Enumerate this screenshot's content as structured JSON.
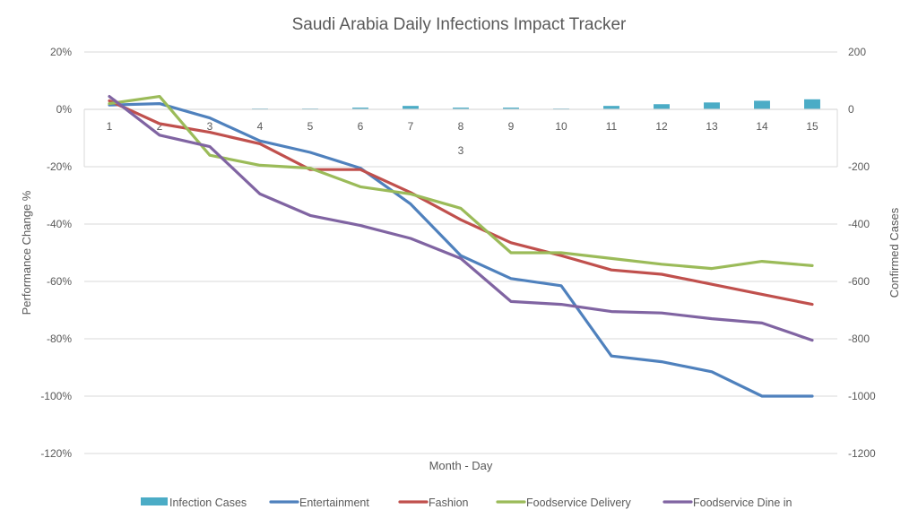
{
  "chart_data": {
    "type": "bar+line",
    "title": "Saudi Arabia Daily Infections Impact Tracker",
    "xlabel": "Month - Day",
    "ylabel": "Performance Change %",
    "y2label": "Confirmed Cases",
    "month_label": "3",
    "categories": [
      "1",
      "2",
      "3",
      "4",
      "5",
      "6",
      "7",
      "8",
      "9",
      "10",
      "11",
      "12",
      "13",
      "14",
      "15"
    ],
    "ylim": [
      -120,
      20
    ],
    "yticks": [
      "20%",
      "0%",
      "-20%",
      "-40%",
      "-60%",
      "-80%",
      "-100%",
      "-120%"
    ],
    "y2lim": [
      -1200,
      200
    ],
    "y2ticks": [
      "200",
      "0",
      "-200",
      "-400",
      "-600",
      "-800",
      "-1000",
      "-1200"
    ],
    "grid": true,
    "legend": "bottom",
    "bar_series": {
      "name": "Infection Cases",
      "axis": "right",
      "color": "#4bacc6",
      "values": [
        0,
        0,
        0,
        3,
        3,
        6,
        12,
        6,
        6,
        3,
        12,
        18,
        24,
        30,
        35
      ]
    },
    "series": [
      {
        "name": "Entertainment",
        "color": "#4f81bd",
        "values": [
          1.5,
          2,
          -3,
          -11,
          -15,
          -20.5,
          -33,
          -51,
          -59,
          -61.5,
          -86,
          -88,
          -91.5,
          -100,
          -100
        ]
      },
      {
        "name": "Fashion",
        "color": "#c0504d",
        "values": [
          3,
          -5,
          -8,
          -12,
          -21,
          -21,
          -29,
          -38.5,
          -46.5,
          -51,
          -56,
          -57.5,
          -61,
          -64.5,
          -68
        ]
      },
      {
        "name": "Foodservice Delivery",
        "color": "#9bbb59",
        "values": [
          2,
          4.5,
          -16,
          -19.5,
          -20.5,
          -27,
          -29.5,
          -34.5,
          -50,
          -50,
          -52,
          -54,
          -55.5,
          -53,
          -54.5
        ]
      },
      {
        "name": "Foodservice Dine in",
        "color": "#8064a2",
        "values": [
          4.5,
          -9,
          -13,
          -29.5,
          -37,
          -40.5,
          -45,
          -52,
          -67,
          -68,
          -70.5,
          -71,
          -73,
          -74.5,
          -80.5
        ]
      }
    ]
  }
}
